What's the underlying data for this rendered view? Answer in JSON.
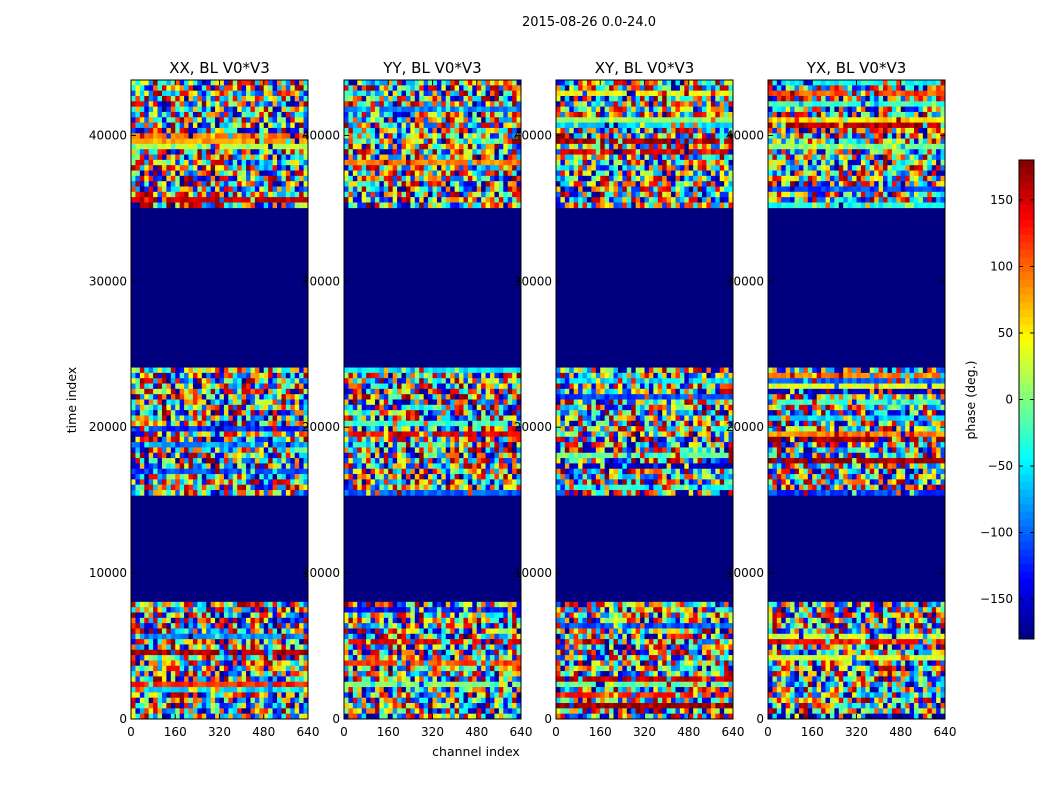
{
  "figure": {
    "suptitle": "2015-08-26 0.0-24.0",
    "xlabel": "channel index",
    "ylabel": "time index",
    "colorbar_label": "phase (deg.)"
  },
  "chart_data": {
    "type": "heatmap",
    "colormap": "jet",
    "x_range": [
      0,
      640
    ],
    "y_range": [
      0,
      43800
    ],
    "x_ticks": [
      0,
      160,
      320,
      480,
      640
    ],
    "x_tick_labels": [
      "0",
      "160",
      "320",
      "480",
      "640"
    ],
    "y_ticks": [
      0,
      10000,
      20000,
      30000,
      40000
    ],
    "y_tick_labels": [
      "0",
      "10000",
      "20000",
      "30000",
      "40000"
    ],
    "color_range": [
      -180,
      180
    ],
    "colorbar_ticks": [
      150,
      100,
      50,
      0,
      -50,
      -100,
      -150
    ],
    "colorbar_tick_labels": [
      "150",
      "100",
      "50",
      "0",
      "−50",
      "−100",
      "−150"
    ],
    "panels": [
      {
        "title": "XX, BL V0*V3",
        "polarization": "XX"
      },
      {
        "title": "YY, BL V0*V3",
        "polarization": "YY"
      },
      {
        "title": "XY, BL V0*V3",
        "polarization": "XY"
      },
      {
        "title": "YX, BL V0*V3",
        "polarization": "YX"
      }
    ],
    "noise_time_bands": [
      [
        0,
        8200
      ],
      [
        15200,
        24000
      ],
      [
        35000,
        43800
      ]
    ],
    "flat_time_bands": [
      [
        8200,
        15200
      ],
      [
        24000,
        35000
      ]
    ],
    "flat_value": -180
  },
  "colors": {
    "background": "#ffffff",
    "axis": "#000000",
    "flat_region": "#00007f"
  }
}
